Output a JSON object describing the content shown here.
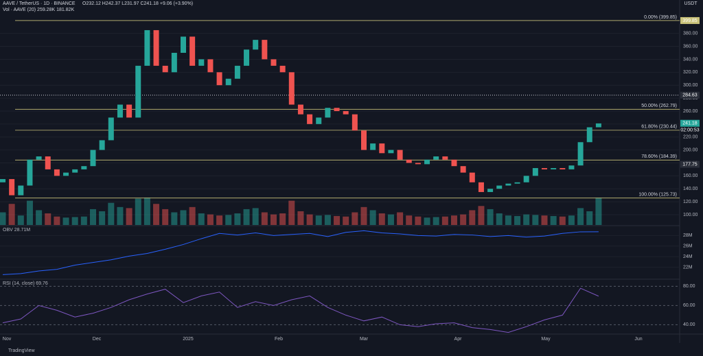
{
  "header": {
    "symbol": "AAVE / TetherUS · 1D · BINANCE",
    "ohlc": "O232.12 H242.37 L231.97 C241.18 +9.06 (+3.90%)",
    "volume": "Vol · AAVE (20) 259.28K 181.82K",
    "currency": "USDT"
  },
  "chart_data": {
    "type": "candlestick",
    "x_labels": [
      "Nov",
      "Dec",
      "2025",
      "Feb",
      "Mar",
      "Apr",
      "May",
      "Jun"
    ],
    "open": [
      150,
      155,
      130,
      145,
      185,
      190,
      170,
      160,
      165,
      170,
      175,
      200,
      215,
      250,
      270,
      250,
      330,
      385,
      330,
      320,
      350,
      375,
      330,
      340,
      320,
      300,
      310,
      330,
      355,
      370,
      340,
      330,
      320,
      270,
      255,
      240,
      250,
      265,
      260,
      255,
      230,
      200,
      210,
      195,
      200,
      185,
      180,
      178,
      185,
      190,
      185,
      175,
      165,
      150,
      135,
      140,
      145,
      148,
      150,
      160,
      172,
      170,
      172,
      170,
      176,
      212,
      235
    ],
    "close": [
      155,
      130,
      145,
      185,
      190,
      170,
      160,
      165,
      170,
      175,
      200,
      215,
      250,
      270,
      250,
      330,
      385,
      330,
      320,
      350,
      375,
      330,
      340,
      320,
      300,
      310,
      330,
      355,
      370,
      340,
      330,
      320,
      270,
      255,
      240,
      250,
      265,
      260,
      255,
      230,
      200,
      210,
      195,
      200,
      185,
      180,
      178,
      185,
      190,
      185,
      175,
      165,
      150,
      135,
      140,
      145,
      148,
      150,
      160,
      172,
      170,
      172,
      170,
      176,
      212,
      235,
      241
    ],
    "volume": [
      120,
      200,
      90,
      230,
      140,
      110,
      80,
      70,
      75,
      80,
      150,
      130,
      210,
      170,
      160,
      250,
      260,
      200,
      150,
      120,
      140,
      170,
      110,
      100,
      90,
      95,
      110,
      150,
      160,
      120,
      100,
      110,
      230,
      130,
      100,
      90,
      95,
      85,
      80,
      120,
      170,
      140,
      110,
      100,
      120,
      90,
      80,
      70,
      75,
      80,
      90,
      100,
      140,
      180,
      150,
      110,
      90,
      85,
      100,
      95,
      90,
      85,
      80,
      90,
      160,
      130,
      259.28
    ],
    "color_up": "#26a69a",
    "color_down": "#ef5350",
    "ylim": [
      84.1,
      412.5
    ],
    "yticks": [
      {
        "value": 100,
        "label": "100.00"
      },
      {
        "value": 120,
        "label": "120.00"
      },
      {
        "value": 140,
        "label": "140.00"
      },
      {
        "value": 160,
        "label": "160.00"
      },
      {
        "value": 180,
        "label": "180.00"
      },
      {
        "value": 200,
        "label": "200.00"
      },
      {
        "value": 220,
        "label": "220.00"
      },
      {
        "value": 240,
        "label": "240.00"
      },
      {
        "value": 260,
        "label": "260.00"
      },
      {
        "value": 280,
        "label": "280.00"
      },
      {
        "value": 300,
        "label": "300.00"
      },
      {
        "value": 320,
        "label": "320.00"
      },
      {
        "value": 340,
        "label": "340.00"
      },
      {
        "value": 360,
        "label": "360.00"
      },
      {
        "value": 380,
        "label": "380.00"
      }
    ],
    "fib_levels": [
      {
        "value": 399.85,
        "label": "0.00% (399.85)"
      },
      {
        "value": 262.79,
        "label": "50.00% (262.79)"
      },
      {
        "value": 230.44,
        "label": "61.80% (230.44)"
      },
      {
        "value": 184.39,
        "label": "78.60% (184.39)"
      },
      {
        "value": 125.73,
        "label": "100.00% (125.73)"
      }
    ],
    "price_tags": [
      {
        "value": 399.85,
        "label": "399.85"
      },
      {
        "value": 284.63,
        "label": "284.63"
      },
      {
        "value": 241.18,
        "label": "241.18"
      },
      {
        "value": 177.75,
        "label": "177.75"
      }
    ],
    "countdown": "02:00:53",
    "obv": {
      "title": "OBV 28.71M",
      "values": [
        20.6,
        20.8,
        21.3,
        21.6,
        22.4,
        22.9,
        23.4,
        24.1,
        24.6,
        25.4,
        26.3,
        27.4,
        28.4,
        28.1,
        28.5,
        28.0,
        28.2,
        28.4,
        27.8,
        28.6,
        28.9,
        28.5,
        28.3,
        28.0,
        27.9,
        28.2,
        28.1,
        27.8,
        28.0,
        27.7,
        27.9,
        28.4,
        28.7,
        28.71
      ],
      "ylim": [
        20.0,
        29.6
      ],
      "yticks": [
        {
          "value": 22,
          "label": "22M"
        },
        {
          "value": 24,
          "label": "24M"
        },
        {
          "value": 26,
          "label": "26M"
        },
        {
          "value": 28,
          "label": "28M"
        }
      ]
    },
    "rsi": {
      "title": "RSI (14, close) 69.76",
      "values": [
        42,
        46,
        60,
        55,
        48,
        52,
        58,
        66,
        72,
        77,
        63,
        70,
        74,
        58,
        64,
        60,
        66,
        70,
        58,
        50,
        44,
        48,
        40,
        38,
        41,
        42,
        37,
        35,
        32,
        38,
        45,
        50,
        78,
        69.76
      ],
      "ylim": [
        31,
        86
      ],
      "yticks": [
        {
          "value": 40,
          "label": "40.00"
        },
        {
          "value": 60,
          "label": "60.00"
        },
        {
          "value": 80,
          "label": "80.00"
        }
      ]
    },
    "brand": "TradingView"
  }
}
